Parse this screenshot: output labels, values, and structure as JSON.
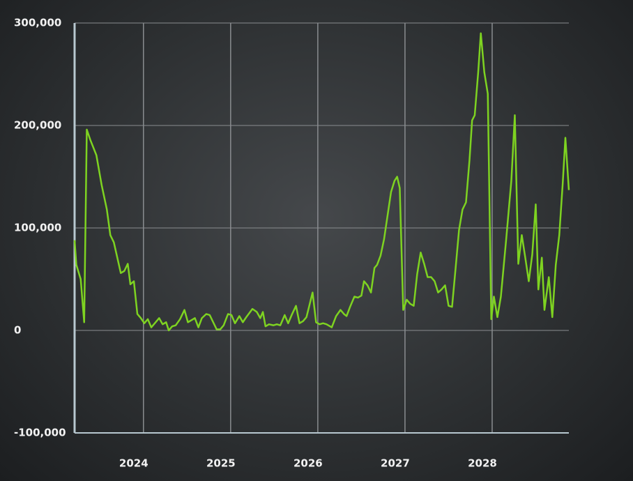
{
  "chart_data": {
    "type": "line",
    "color": "#7ed321",
    "grid": true,
    "x": [
      2023.21,
      2023.23,
      2023.28,
      2023.32,
      2023.35,
      2023.39,
      2023.46,
      2023.52,
      2023.58,
      2023.62,
      2023.66,
      2023.7,
      2023.74,
      2023.78,
      2023.82,
      2023.85,
      2023.89,
      2023.93,
      2023.97,
      2024.01,
      2024.05,
      2024.09,
      2024.13,
      2024.18,
      2024.22,
      2024.26,
      2024.29,
      2024.33,
      2024.37,
      2024.42,
      2024.47,
      2024.51,
      2024.55,
      2024.59,
      2024.63,
      2024.67,
      2024.72,
      2024.76,
      2024.8,
      2024.84,
      2024.88,
      2024.92,
      2024.97,
      2025.01,
      2025.05,
      2025.1,
      2025.14,
      2025.18,
      2025.25,
      2025.3,
      2025.34,
      2025.37,
      2025.4,
      2025.44,
      2025.49,
      2025.53,
      2025.57,
      2025.62,
      2025.66,
      2025.7,
      2025.75,
      2025.79,
      2025.83,
      2025.87,
      2025.94,
      2025.98,
      2026.02,
      2026.06,
      2026.1,
      2026.16,
      2026.21,
      2026.26,
      2026.3,
      2026.33,
      2026.37,
      2026.42,
      2026.46,
      2026.5,
      2026.53,
      2026.57,
      2026.61,
      2026.65,
      2026.68,
      2026.72,
      2026.76,
      2026.8,
      2026.84,
      2026.88,
      2026.91,
      2026.94,
      2026.98,
      2027.02,
      2027.06,
      2027.1,
      2027.14,
      2027.18,
      2027.22,
      2027.26,
      2027.3,
      2027.34,
      2027.38,
      2027.42,
      2027.46,
      2027.5,
      2027.54,
      2027.58,
      2027.62,
      2027.66,
      2027.7,
      2027.74,
      2027.77,
      2027.8,
      2027.84,
      2027.87,
      2027.91,
      2027.95,
      2027.99,
      2028.02,
      2028.06,
      2028.1,
      2028.16,
      2028.22,
      2028.26,
      2028.3,
      2028.34,
      2028.38,
      2028.42,
      2028.46,
      2028.5,
      2028.53,
      2028.57,
      2028.6,
      2028.65,
      2028.69,
      2028.73,
      2028.77,
      2028.81,
      2028.84,
      2028.88
    ],
    "values": [
      88000,
      64000,
      50000,
      8000,
      196000,
      186000,
      171000,
      142000,
      118000,
      93000,
      86000,
      71000,
      56000,
      58000,
      65000,
      45000,
      48000,
      16000,
      12000,
      7000,
      11000,
      3000,
      7000,
      12000,
      6000,
      8000,
      0,
      4000,
      5000,
      11000,
      20000,
      8000,
      10000,
      12000,
      3000,
      12000,
      16000,
      15000,
      8000,
      1000,
      1000,
      5000,
      16000,
      15000,
      7000,
      14000,
      8000,
      13000,
      21000,
      18000,
      12000,
      18000,
      4000,
      6000,
      5000,
      6000,
      5000,
      15000,
      7000,
      15000,
      24000,
      7000,
      9000,
      13000,
      37000,
      8000,
      6000,
      7000,
      6000,
      3000,
      14000,
      20000,
      16000,
      14000,
      23000,
      33000,
      32000,
      34000,
      48000,
      44000,
      37000,
      61000,
      64000,
      73000,
      89000,
      112000,
      135000,
      146000,
      150000,
      139000,
      20000,
      30000,
      26000,
      24000,
      55000,
      76000,
      65000,
      52000,
      52000,
      48000,
      37000,
      40000,
      44000,
      24000,
      23000,
      60000,
      98000,
      118000,
      125000,
      166000,
      205000,
      210000,
      252000,
      290000,
      252000,
      231000,
      11000,
      33000,
      13000,
      33000,
      88000,
      146000,
      210000,
      65000,
      93000,
      71000,
      48000,
      74000,
      123000,
      40000,
      71000,
      20000,
      52000,
      13000,
      64000,
      93000,
      144000,
      188000,
      137000
    ],
    "xlim": [
      2023.21,
      2028.88
    ],
    "xticks": [
      2024,
      2025,
      2026,
      2027,
      2028
    ],
    "ylim": [
      -100000,
      300000
    ],
    "yticks": [
      {
        "value": -100000,
        "label": "-100,000"
      },
      0,
      {
        "value": 100000,
        "label": "100,000"
      },
      {
        "value": 200000,
        "label": "200,000"
      },
      {
        "value": 300000,
        "label": "300,000"
      }
    ]
  }
}
